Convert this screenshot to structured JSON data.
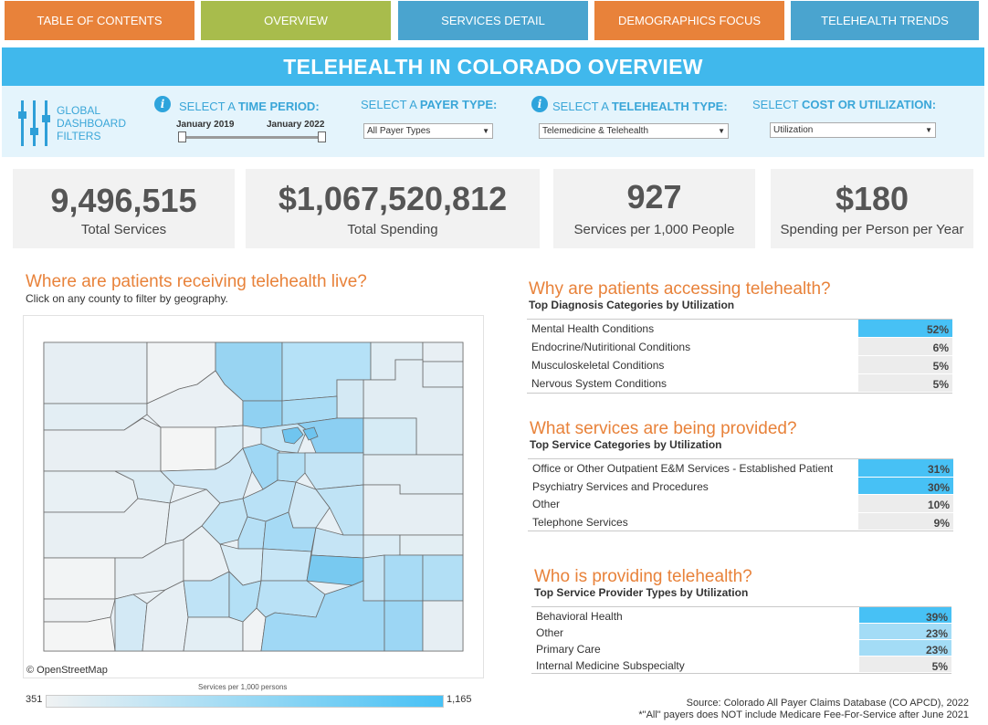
{
  "nav": {
    "items": [
      {
        "label": "TABLE OF CONTENTS"
      },
      {
        "label": "OVERVIEW"
      },
      {
        "label": "SERVICES DETAIL"
      },
      {
        "label": "DEMOGRAPHICS FOCUS"
      },
      {
        "label": "TELEHEALTH TRENDS"
      }
    ]
  },
  "title": "TELEHEALTH IN COLORADO OVERVIEW",
  "filters": {
    "global_label": "GLOBAL DASHBOARD FILTERS",
    "time_period": {
      "prefix": "SELECT A",
      "bold": "TIME PERIOD:",
      "start": "January 2019",
      "end": "January 2022"
    },
    "payer_type": {
      "prefix": "SELECT A",
      "bold": "PAYER TYPE:",
      "value": "All Payer Types"
    },
    "telehealth_type": {
      "prefix": "SELECT A",
      "bold": "TELEHEALTH TYPE:",
      "value": "Telemedicine & Telehealth"
    },
    "cost_util": {
      "prefix": "SELECT",
      "bold": "COST OR UTILIZATION:",
      "value": "Utilization"
    }
  },
  "kpis": [
    {
      "value": "9,496,515",
      "label": "Total Services"
    },
    {
      "value": "$1,067,520,812",
      "label": "Total Spending"
    },
    {
      "value": "927",
      "label": "Services per 1,000 People"
    },
    {
      "value": "$180",
      "label": "Spending per Person per Year"
    }
  ],
  "map": {
    "title": "Where are patients receiving telehealth live?",
    "subtitle": "Click on any county to filter by geography.",
    "attribution": "© OpenStreetMap",
    "legend_title": "Services per 1,000 persons",
    "legend_min": "351",
    "legend_max": "1,165",
    "color_low": "#f0f2f3",
    "color_high": "#47c1f5"
  },
  "diagnosis": {
    "title": "Why are patients accessing telehealth?",
    "subtitle": "Top Diagnosis Categories by Utilization",
    "rows": [
      {
        "label": "Mental Health Conditions",
        "value": "52%",
        "level": "hi"
      },
      {
        "label": "Endocrine/Nutiritional Conditions",
        "value": "6%",
        "level": "low"
      },
      {
        "label": "Musculoskeletal Conditions",
        "value": "5%",
        "level": "low"
      },
      {
        "label": "Nervous System Conditions",
        "value": "5%",
        "level": "low"
      }
    ]
  },
  "services": {
    "title": "What services are being provided?",
    "subtitle": "Top Service Categories by Utilization",
    "rows": [
      {
        "label": "Office or Other Outpatient E&M Services - Established Patient",
        "value": "31%",
        "level": "hi"
      },
      {
        "label": "Psychiatry Services and Procedures",
        "value": "30%",
        "level": "hi"
      },
      {
        "label": "Other",
        "value": "10%",
        "level": "low"
      },
      {
        "label": "Telephone Services",
        "value": "9%",
        "level": "low"
      }
    ]
  },
  "providers": {
    "title": "Who is providing telehealth?",
    "subtitle": "Top Service Provider Types by Utilization",
    "rows": [
      {
        "label": "Behavioral Health",
        "value": "39%",
        "level": "hi"
      },
      {
        "label": "Other",
        "value": "23%",
        "level": "mid"
      },
      {
        "label": "Primary Care",
        "value": "23%",
        "level": "mid"
      },
      {
        "label": "Internal Medicine Subspecialty",
        "value": "5%",
        "level": "low"
      }
    ]
  },
  "source": {
    "line1": "Source: Colorado All Payer Claims Database (CO APCD), 2022",
    "line2": "*\"All\" payers does NOT include Medicare Fee-For-Service after June 2021"
  }
}
